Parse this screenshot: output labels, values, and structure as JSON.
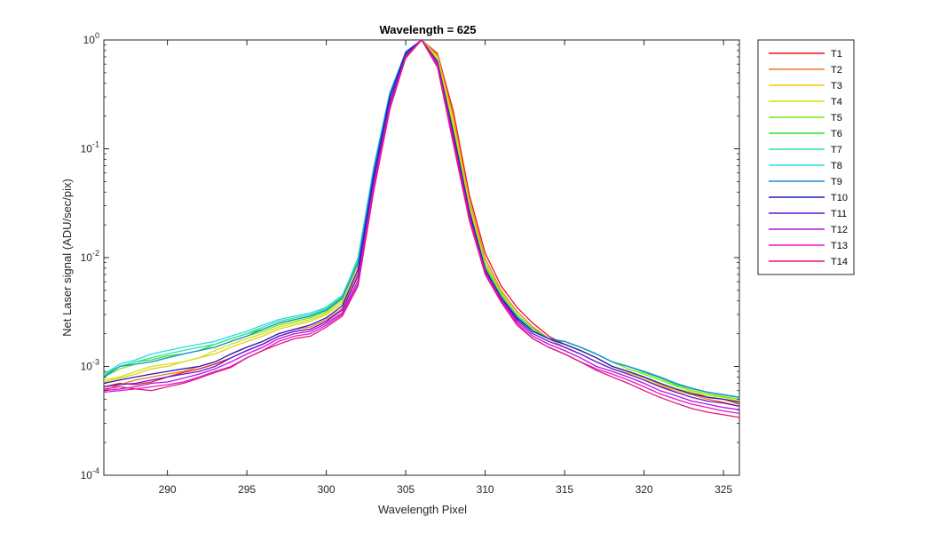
{
  "chart_data": {
    "type": "line",
    "title": "Wavelength = 625",
    "xlabel": "Wavelength Pixel",
    "ylabel": "Net Laser signal  (ADU/sec/pix)",
    "xlim": [
      286,
      326
    ],
    "ylim": [
      0.0001,
      1
    ],
    "yscale": "log",
    "xticks": [
      290,
      295,
      300,
      305,
      310,
      315,
      320,
      325
    ],
    "yticks": [
      {
        "value": 0.0001,
        "base": "10",
        "exp": "-4"
      },
      {
        "value": 0.001,
        "base": "10",
        "exp": "-3"
      },
      {
        "value": 0.01,
        "base": "10",
        "exp": "-2"
      },
      {
        "value": 0.1,
        "base": "10",
        "exp": "-1"
      },
      {
        "value": 1,
        "base": "10",
        "exp": "0"
      }
    ],
    "grid": false,
    "legend_position": "outside-top-right",
    "x": [
      286,
      287,
      288,
      289,
      290,
      291,
      292,
      293,
      294,
      295,
      296,
      297,
      298,
      299,
      300,
      301,
      302,
      303,
      304,
      305,
      306,
      307,
      308,
      309,
      310,
      311,
      312,
      313,
      314,
      315,
      316,
      317,
      318,
      319,
      320,
      321,
      322,
      323,
      324,
      325,
      326
    ],
    "series": [
      {
        "name": "T1",
        "color": "#e6141e",
        "values": [
          0.00065,
          0.0007,
          0.00068,
          0.00072,
          0.0008,
          0.00088,
          0.00095,
          0.00105,
          0.0012,
          0.0014,
          0.0016,
          0.0019,
          0.0021,
          0.0022,
          0.0026,
          0.0033,
          0.007,
          0.05,
          0.25,
          0.68,
          1.0,
          0.75,
          0.22,
          0.038,
          0.011,
          0.0055,
          0.0035,
          0.0025,
          0.0019,
          0.0016,
          0.0014,
          0.0012,
          0.001,
          0.0009,
          0.0008,
          0.0007,
          0.00062,
          0.00058,
          0.00052,
          0.0005,
          0.00045
        ]
      },
      {
        "name": "T2",
        "color": "#f07820",
        "values": [
          0.0006,
          0.00068,
          0.00075,
          0.0008,
          0.00085,
          0.0009,
          0.001,
          0.0011,
          0.0013,
          0.0015,
          0.0017,
          0.002,
          0.0022,
          0.0023,
          0.0027,
          0.0034,
          0.0072,
          0.052,
          0.26,
          0.7,
          1.0,
          0.73,
          0.2,
          0.034,
          0.0098,
          0.005,
          0.0032,
          0.0023,
          0.0018,
          0.0015,
          0.0013,
          0.0011,
          0.00095,
          0.00085,
          0.00075,
          0.00066,
          0.0006,
          0.00055,
          0.0005,
          0.00047,
          0.00043
        ]
      },
      {
        "name": "T3",
        "color": "#f0c814",
        "values": [
          0.00072,
          0.00078,
          0.00085,
          0.00095,
          0.001,
          0.0011,
          0.0012,
          0.0013,
          0.0015,
          0.0017,
          0.0019,
          0.0022,
          0.0024,
          0.0026,
          0.003,
          0.0038,
          0.0085,
          0.06,
          0.28,
          0.72,
          1.0,
          0.7,
          0.18,
          0.032,
          0.009,
          0.0048,
          0.003,
          0.0022,
          0.0018,
          0.0016,
          0.0014,
          0.0012,
          0.001,
          0.00088,
          0.00078,
          0.00068,
          0.0006,
          0.00056,
          0.00052,
          0.0005,
          0.00046
        ]
      },
      {
        "name": "T4",
        "color": "#c8e614",
        "values": [
          0.00075,
          0.0008,
          0.0009,
          0.001,
          0.00105,
          0.0011,
          0.0012,
          0.0014,
          0.0016,
          0.0018,
          0.002,
          0.0023,
          0.0025,
          0.0027,
          0.0031,
          0.004,
          0.009,
          0.062,
          0.29,
          0.73,
          1.0,
          0.68,
          0.16,
          0.03,
          0.0088,
          0.0047,
          0.003,
          0.0022,
          0.0018,
          0.0016,
          0.0014,
          0.0012,
          0.001,
          0.0009,
          0.0008,
          0.0007,
          0.00062,
          0.00058,
          0.00054,
          0.00052,
          0.00048
        ]
      },
      {
        "name": "T5",
        "color": "#78e614",
        "values": [
          0.0008,
          0.00095,
          0.00105,
          0.0011,
          0.0012,
          0.0013,
          0.0014,
          0.0015,
          0.0017,
          0.0019,
          0.0021,
          0.0024,
          0.0026,
          0.0028,
          0.0032,
          0.0042,
          0.0095,
          0.065,
          0.3,
          0.74,
          1.0,
          0.65,
          0.15,
          0.028,
          0.0085,
          0.0046,
          0.003,
          0.0022,
          0.0018,
          0.0017,
          0.0015,
          0.0013,
          0.0011,
          0.00095,
          0.00085,
          0.00075,
          0.00066,
          0.0006,
          0.00056,
          0.00053,
          0.0005
        ]
      },
      {
        "name": "T6",
        "color": "#28e628",
        "values": [
          0.00082,
          0.001,
          0.0011,
          0.00115,
          0.00125,
          0.0013,
          0.0014,
          0.0016,
          0.0018,
          0.002,
          0.0022,
          0.0025,
          0.0027,
          0.0029,
          0.0033,
          0.0043,
          0.01,
          0.068,
          0.31,
          0.75,
          1.0,
          0.63,
          0.14,
          0.027,
          0.0082,
          0.0045,
          0.0029,
          0.0022,
          0.0018,
          0.0017,
          0.0015,
          0.0013,
          0.0011,
          0.001,
          0.00088,
          0.00078,
          0.00068,
          0.00062,
          0.00058,
          0.00055,
          0.00052
        ]
      },
      {
        "name": "T7",
        "color": "#28e696",
        "values": [
          0.00085,
          0.001,
          0.0011,
          0.0012,
          0.0013,
          0.0014,
          0.0015,
          0.0016,
          0.0018,
          0.002,
          0.0023,
          0.0026,
          0.0028,
          0.003,
          0.0034,
          0.0044,
          0.0098,
          0.07,
          0.32,
          0.76,
          1.0,
          0.61,
          0.13,
          0.026,
          0.008,
          0.0044,
          0.0029,
          0.0021,
          0.0018,
          0.0017,
          0.0015,
          0.0013,
          0.0011,
          0.001,
          0.0009,
          0.0008,
          0.0007,
          0.00063,
          0.00058,
          0.00055,
          0.00052
        ]
      },
      {
        "name": "T8",
        "color": "#28dcdc",
        "values": [
          0.00085,
          0.00105,
          0.00115,
          0.0013,
          0.0014,
          0.0015,
          0.0016,
          0.0017,
          0.0019,
          0.0021,
          0.0024,
          0.0027,
          0.0029,
          0.0031,
          0.0035,
          0.0045,
          0.0095,
          0.07,
          0.33,
          0.77,
          1.0,
          0.6,
          0.125,
          0.025,
          0.0078,
          0.0043,
          0.0028,
          0.0021,
          0.0018,
          0.0017,
          0.0015,
          0.0013,
          0.0011,
          0.001,
          0.0009,
          0.0008,
          0.0007,
          0.00063,
          0.00058,
          0.00055,
          0.00052
        ]
      },
      {
        "name": "T9",
        "color": "#1e8cdc",
        "values": [
          0.0008,
          0.001,
          0.00105,
          0.0011,
          0.0012,
          0.0013,
          0.0014,
          0.0015,
          0.0017,
          0.0019,
          0.0022,
          0.0025,
          0.0027,
          0.0029,
          0.0033,
          0.0042,
          0.009,
          0.065,
          0.32,
          0.78,
          1.0,
          0.62,
          0.13,
          0.026,
          0.0078,
          0.0043,
          0.0028,
          0.0021,
          0.0018,
          0.0017,
          0.0015,
          0.0013,
          0.0011,
          0.001,
          0.0009,
          0.0008,
          0.0007,
          0.00063,
          0.00058,
          0.00055,
          0.00052
        ]
      },
      {
        "name": "T10",
        "color": "#1e1ebe",
        "values": [
          0.0007,
          0.00075,
          0.0008,
          0.00085,
          0.0009,
          0.00095,
          0.001,
          0.0011,
          0.0013,
          0.0015,
          0.0017,
          0.002,
          0.0022,
          0.0024,
          0.0028,
          0.0036,
          0.0078,
          0.058,
          0.3,
          0.76,
          1.0,
          0.63,
          0.14,
          0.027,
          0.0078,
          0.0043,
          0.0028,
          0.0021,
          0.0018,
          0.0016,
          0.0014,
          0.0012,
          0.001,
          0.0009,
          0.0008,
          0.0007,
          0.00062,
          0.00056,
          0.00052,
          0.0005,
          0.00047
        ]
      },
      {
        "name": "T11",
        "color": "#6414d2",
        "values": [
          0.00065,
          0.00068,
          0.0007,
          0.00075,
          0.0008,
          0.00085,
          0.0009,
          0.001,
          0.0012,
          0.0014,
          0.0016,
          0.0019,
          0.0021,
          0.0022,
          0.0026,
          0.0033,
          0.0068,
          0.052,
          0.27,
          0.73,
          1.0,
          0.62,
          0.13,
          0.025,
          0.0076,
          0.0042,
          0.0027,
          0.002,
          0.0017,
          0.0015,
          0.0013,
          0.0011,
          0.00095,
          0.00085,
          0.00075,
          0.00065,
          0.00058,
          0.00052,
          0.00048,
          0.00046,
          0.00043
        ]
      },
      {
        "name": "T12",
        "color": "#b414dc",
        "values": [
          0.0006,
          0.00062,
          0.00065,
          0.0007,
          0.00072,
          0.00078,
          0.00085,
          0.00095,
          0.0011,
          0.0013,
          0.0015,
          0.0018,
          0.002,
          0.0021,
          0.0025,
          0.0031,
          0.0062,
          0.048,
          0.25,
          0.71,
          1.0,
          0.6,
          0.12,
          0.024,
          0.0074,
          0.0041,
          0.0026,
          0.0019,
          0.0016,
          0.0014,
          0.0012,
          0.001,
          0.0009,
          0.0008,
          0.0007,
          0.0006,
          0.00054,
          0.00048,
          0.00045,
          0.00042,
          0.0004
        ]
      },
      {
        "name": "T13",
        "color": "#e614c8",
        "values": [
          0.00058,
          0.0006,
          0.00062,
          0.00065,
          0.00068,
          0.00072,
          0.0008,
          0.0009,
          0.001,
          0.0012,
          0.0014,
          0.0017,
          0.0019,
          0.002,
          0.0024,
          0.003,
          0.0058,
          0.045,
          0.24,
          0.7,
          1.0,
          0.58,
          0.115,
          0.023,
          0.0072,
          0.004,
          0.0025,
          0.0018,
          0.0015,
          0.0013,
          0.0011,
          0.00095,
          0.00085,
          0.00075,
          0.00065,
          0.00056,
          0.0005,
          0.00045,
          0.00042,
          0.00039,
          0.00037
        ]
      },
      {
        "name": "T14",
        "color": "#e6147a",
        "values": [
          0.00062,
          0.00065,
          0.00062,
          0.0006,
          0.00065,
          0.0007,
          0.00078,
          0.00088,
          0.00098,
          0.0012,
          0.0014,
          0.0016,
          0.0018,
          0.0019,
          0.0023,
          0.0029,
          0.0055,
          0.042,
          0.23,
          0.69,
          1.0,
          0.56,
          0.11,
          0.022,
          0.007,
          0.0039,
          0.0024,
          0.0018,
          0.0015,
          0.0013,
          0.0011,
          0.00092,
          0.0008,
          0.0007,
          0.0006,
          0.00052,
          0.00046,
          0.00041,
          0.00038,
          0.00036,
          0.00034
        ]
      }
    ]
  }
}
